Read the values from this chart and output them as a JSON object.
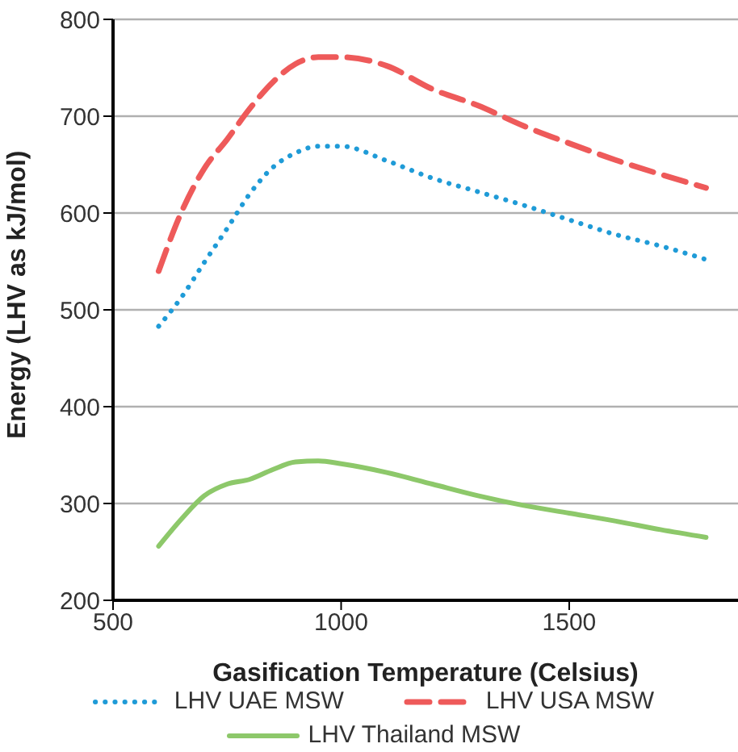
{
  "chart_data": {
    "type": "line",
    "xlabel": "Gasification Temperature (Celsius)",
    "ylabel": "Energy (LHV as kJ/mol)",
    "x": [
      600,
      650,
      700,
      750,
      800,
      850,
      900,
      950,
      1000,
      1100,
      1200,
      1300,
      1400,
      1500,
      1600,
      1700,
      1800
    ],
    "series": [
      {
        "name": "LHV UAE MSW",
        "color": "#1f9bd7",
        "line_style": "dotted",
        "values": [
          483,
          513,
          549,
          584,
          620,
          647,
          662,
          669,
          669,
          654,
          636,
          622,
          608,
          593,
          578,
          566,
          552
        ]
      },
      {
        "name": "LHV USA MSW",
        "color": "#ee5a5a",
        "line_style": "dashed",
        "values": [
          540,
          601,
          646,
          676,
          708,
          735,
          754,
          761,
          761,
          752,
          728,
          711,
          690,
          672,
          655,
          640,
          626
        ]
      },
      {
        "name": "LHV Thailand MSW",
        "color": "#8dc86a",
        "line_style": "solid",
        "values": [
          256,
          284,
          308,
          320,
          325,
          335,
          343,
          344,
          341,
          332,
          320,
          308,
          298,
          290,
          282,
          273,
          265
        ]
      }
    ],
    "xlim": [
      500,
      1870
    ],
    "xticks": [
      500,
      1000,
      1500
    ],
    "ylim": [
      200,
      800
    ],
    "yticks": [
      200,
      300,
      400,
      500,
      600,
      700,
      800
    ],
    "grid": "y",
    "legend": "bottom",
    "marker": "none"
  }
}
